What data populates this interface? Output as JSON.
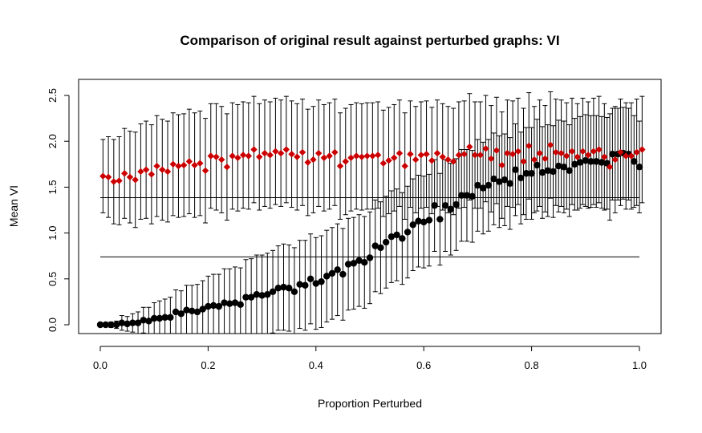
{
  "chart_data": {
    "type": "scatter",
    "title": "Comparison of original result against perturbed graphs: VI",
    "xlabel": "Proportion Perturbed",
    "ylabel": "Mean VI",
    "xlim": [
      0.0,
      1.0
    ],
    "ylim": [
      0.0,
      2.5
    ],
    "x_ticks": [
      "0.0",
      "0.2",
      "0.4",
      "0.6",
      "0.8",
      "1.0"
    ],
    "y_ticks": [
      "0.0",
      "0.5",
      "1.0",
      "1.5",
      "2.0",
      "2.5"
    ],
    "grid": false,
    "reference_lines": [
      0.74,
      1.385
    ],
    "series": [
      {
        "marker": "circle",
        "color": "#000000",
        "x_start": 0.0,
        "x_step": 0.01,
        "values": [
          0.0,
          0.0,
          0.0,
          0.0,
          0.02,
          0.01,
          0.02,
          0.02,
          0.05,
          0.04,
          0.07,
          0.07,
          0.08,
          0.08,
          0.14,
          0.12,
          0.16,
          0.15,
          0.14,
          0.17,
          0.2,
          0.21,
          0.2,
          0.24,
          0.23,
          0.24,
          0.22,
          0.3,
          0.3,
          0.33,
          0.32,
          0.33,
          0.36,
          0.4,
          0.41,
          0.4,
          0.36,
          0.44,
          0.43,
          0.5,
          0.45,
          0.47,
          0.53,
          0.56,
          0.6,
          0.55,
          0.66,
          0.67,
          0.7,
          0.68,
          0.73,
          0.86,
          0.84,
          0.9,
          0.96,
          0.98,
          0.94,
          1.01,
          1.09,
          1.13,
          1.12,
          1.14,
          1.3,
          1.15,
          1.3,
          1.26,
          1.31,
          1.41,
          1.41,
          1.4,
          1.52,
          1.49,
          1.52,
          1.59,
          1.56,
          1.58,
          1.54,
          1.69,
          1.6,
          1.65,
          1.65,
          1.74,
          1.66,
          1.68,
          1.67,
          1.73,
          1.72,
          1.68,
          1.75,
          1.77,
          1.79,
          1.78,
          1.78,
          1.77,
          1.76,
          1.86,
          1.86,
          1.87,
          1.86,
          1.78,
          1.72
        ],
        "err": [
          0.02,
          0.02,
          0.03,
          0.04,
          0.08,
          0.08,
          0.1,
          0.12,
          0.14,
          0.15,
          0.17,
          0.19,
          0.2,
          0.22,
          0.24,
          0.25,
          0.27,
          0.28,
          0.3,
          0.31,
          0.33,
          0.34,
          0.35,
          0.37,
          0.38,
          0.39,
          0.4,
          0.41,
          0.42,
          0.43,
          0.44,
          0.45,
          0.45,
          0.46,
          0.47,
          0.47,
          0.48,
          0.48,
          0.49,
          0.49,
          0.5,
          0.5,
          0.5,
          0.5,
          0.5,
          0.5,
          0.5,
          0.5,
          0.5,
          0.5,
          0.5,
          0.5,
          0.5,
          0.5,
          0.5,
          0.5,
          0.5,
          0.5,
          0.5,
          0.5,
          0.5,
          0.5,
          0.5,
          0.5,
          0.5,
          0.5,
          0.5,
          0.5,
          0.5,
          0.5,
          0.5,
          0.5,
          0.5,
          0.5,
          0.5,
          0.5,
          0.5,
          0.5,
          0.5,
          0.5,
          0.5,
          0.5,
          0.5,
          0.5,
          0.5,
          0.5,
          0.5,
          0.5,
          0.5,
          0.5,
          0.5,
          0.5,
          0.5,
          0.5,
          0.5,
          0.5,
          0.5,
          0.5,
          0.5,
          0.5,
          0.5
        ]
      },
      {
        "marker": "diamond",
        "color": "#cc0000",
        "x_start": 0.005,
        "x_step": 0.01,
        "values": [
          1.62,
          1.61,
          1.56,
          1.57,
          1.65,
          1.61,
          1.58,
          1.67,
          1.69,
          1.64,
          1.73,
          1.69,
          1.67,
          1.75,
          1.73,
          1.74,
          1.78,
          1.74,
          1.76,
          1.68,
          1.84,
          1.83,
          1.8,
          1.72,
          1.84,
          1.82,
          1.85,
          1.84,
          1.91,
          1.83,
          1.87,
          1.85,
          1.89,
          1.87,
          1.91,
          1.86,
          1.83,
          1.88,
          1.77,
          1.8,
          1.87,
          1.82,
          1.84,
          1.88,
          1.73,
          1.78,
          1.82,
          1.84,
          1.83,
          1.84,
          1.84,
          1.85,
          1.76,
          1.79,
          1.82,
          1.87,
          1.73,
          1.86,
          1.8,
          1.85,
          1.86,
          1.79,
          1.87,
          1.83,
          1.8,
          1.78,
          1.85,
          1.86,
          1.94,
          1.85,
          1.85,
          1.92,
          1.81,
          1.9,
          1.74,
          1.87,
          1.86,
          1.89,
          1.78,
          1.95,
          1.8,
          1.87,
          1.81,
          1.96,
          1.88,
          1.87,
          1.84,
          1.89,
          1.83,
          1.89,
          1.85,
          1.89,
          1.91,
          1.83,
          1.72,
          1.8,
          1.88,
          1.84,
          1.84,
          1.88,
          1.91
        ],
        "err": [
          0.4,
          0.44,
          0.46,
          0.48,
          0.49,
          0.5,
          0.52,
          0.52,
          0.53,
          0.54,
          0.55,
          0.55,
          0.55,
          0.56,
          0.56,
          0.56,
          0.57,
          0.57,
          0.57,
          0.57,
          0.57,
          0.58,
          0.58,
          0.58,
          0.58,
          0.58,
          0.58,
          0.58,
          0.58,
          0.58,
          0.58,
          0.58,
          0.58,
          0.58,
          0.58,
          0.58,
          0.58,
          0.58,
          0.58,
          0.58,
          0.58,
          0.58,
          0.58,
          0.58,
          0.58,
          0.58,
          0.58,
          0.58,
          0.58,
          0.58,
          0.58,
          0.58,
          0.58,
          0.58,
          0.58,
          0.58,
          0.58,
          0.58,
          0.58,
          0.58,
          0.58,
          0.58,
          0.58,
          0.58,
          0.58,
          0.58,
          0.58,
          0.58,
          0.58,
          0.58,
          0.58,
          0.58,
          0.58,
          0.58,
          0.58,
          0.58,
          0.58,
          0.58,
          0.58,
          0.58,
          0.58,
          0.58,
          0.58,
          0.58,
          0.58,
          0.58,
          0.58,
          0.58,
          0.58,
          0.58,
          0.58,
          0.58,
          0.58,
          0.58,
          0.58,
          0.58,
          0.58,
          0.58,
          0.58,
          0.58,
          0.58
        ]
      }
    ]
  }
}
